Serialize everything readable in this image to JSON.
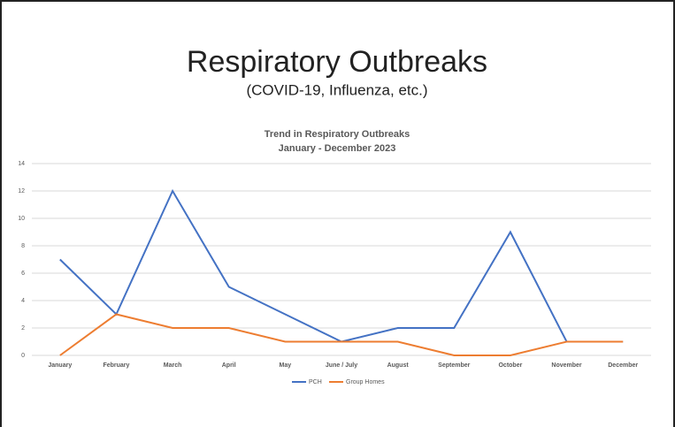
{
  "slide": {
    "title": "Respiratory Outbreaks",
    "subtitle": "(COVID-19, Influenza, etc.)"
  },
  "chart_data": {
    "type": "line",
    "title": "Trend in Respiratory Outbreaks",
    "subtitle": "January - December 2023",
    "categories": [
      "January",
      "February",
      "March",
      "April",
      "May",
      "June / July",
      "August",
      "September",
      "October",
      "November",
      "December"
    ],
    "series": [
      {
        "name": "PCH",
        "color": "#4472c4",
        "values": [
          7,
          3,
          12,
          5,
          3,
          1,
          2,
          2,
          9,
          1,
          1
        ]
      },
      {
        "name": "Group Homes",
        "color": "#ed7d31",
        "values": [
          0,
          3,
          2,
          2,
          1,
          1,
          1,
          0,
          0,
          1,
          1
        ]
      }
    ],
    "ylim": [
      0,
      14
    ],
    "yticks": [
      0,
      2,
      4,
      6,
      8,
      10,
      12,
      14
    ],
    "grid": true,
    "legend": "bottom"
  }
}
